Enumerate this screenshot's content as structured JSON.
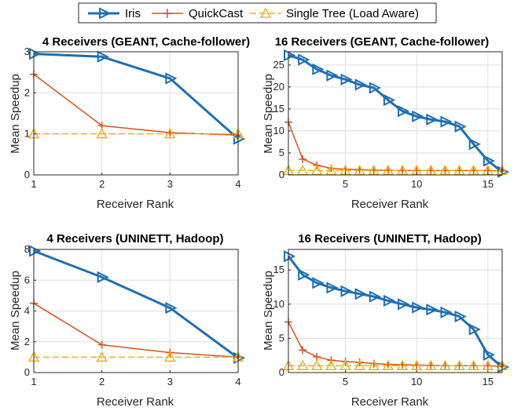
{
  "legend": {
    "placement": "top-center",
    "entries": [
      {
        "name": "Iris",
        "color": "#1f6fb2",
        "marker": "triangle-right",
        "style": "solid-thick"
      },
      {
        "name": "QuickCast",
        "color": "#d95319",
        "marker": "plus",
        "style": "solid"
      },
      {
        "name": "Single Tree (Load Aware)",
        "color": "#edb120",
        "marker": "triangle-up",
        "style": "dashed"
      }
    ]
  },
  "chart_data": [
    {
      "type": "line",
      "title": "4 Receivers (GEANT, Cache-follower)",
      "xlabel": "Receiver Rank",
      "ylabel": "Mean Speedup",
      "xlim": [
        1,
        4
      ],
      "ylim": [
        0,
        3
      ],
      "xticks": [
        1,
        2,
        3,
        4
      ],
      "yticks": [
        0,
        1,
        2,
        3
      ],
      "grid": true,
      "x": [
        1,
        2,
        3,
        4
      ],
      "series": [
        {
          "name": "Iris",
          "values": [
            2.95,
            2.88,
            2.35,
            0.88
          ]
        },
        {
          "name": "QuickCast",
          "values": [
            2.45,
            1.2,
            1.03,
            0.97
          ]
        },
        {
          "name": "Single Tree (Load Aware)",
          "values": [
            1.0,
            1.0,
            1.0,
            1.0
          ]
        }
      ]
    },
    {
      "type": "line",
      "title": "16 Receivers (GEANT, Cache-follower)",
      "xlabel": "Receiver Rank",
      "ylabel": "Mean Speedup",
      "xlim": [
        1,
        16
      ],
      "ylim": [
        0,
        28
      ],
      "xticks": [
        5,
        10,
        15
      ],
      "yticks": [
        0,
        5,
        10,
        15,
        20,
        25
      ],
      "grid": true,
      "x": [
        1,
        2,
        3,
        4,
        5,
        6,
        7,
        8,
        9,
        10,
        11,
        12,
        13,
        14,
        15,
        16
      ],
      "series": [
        {
          "name": "Iris",
          "values": [
            27.2,
            26.2,
            24.0,
            22.6,
            21.7,
            20.5,
            19.8,
            17.0,
            14.5,
            13.3,
            12.6,
            12.1,
            11.0,
            7.0,
            3.2,
            0.7
          ]
        },
        {
          "name": "QuickCast",
          "values": [
            12.0,
            3.6,
            2.2,
            1.5,
            1.3,
            1.2,
            1.1,
            1.05,
            1.0,
            1.0,
            1.0,
            1.0,
            1.0,
            1.0,
            1.0,
            0.9
          ]
        },
        {
          "name": "Single Tree (Load Aware)",
          "values": [
            1,
            1,
            1,
            1,
            1,
            1,
            1,
            1,
            1,
            1,
            1,
            1,
            1,
            1,
            1,
            1
          ]
        }
      ]
    },
    {
      "type": "line",
      "title": "4 Receivers (UNINETT, Hadoop)",
      "xlabel": "Receiver Rank",
      "ylabel": "Mean Speedup",
      "xlim": [
        1,
        4
      ],
      "ylim": [
        0,
        8
      ],
      "xticks": [
        1,
        2,
        3,
        4
      ],
      "yticks": [
        0,
        2,
        4,
        6,
        8
      ],
      "grid": true,
      "x": [
        1,
        2,
        3,
        4
      ],
      "series": [
        {
          "name": "Iris",
          "values": [
            7.9,
            6.2,
            4.2,
            0.95
          ]
        },
        {
          "name": "QuickCast",
          "values": [
            4.5,
            1.8,
            1.3,
            1.0
          ]
        },
        {
          "name": "Single Tree (Load Aware)",
          "values": [
            1.0,
            1.0,
            1.0,
            1.0
          ]
        }
      ]
    },
    {
      "type": "line",
      "title": "16 Receivers (UNINETT, Hadoop)",
      "xlabel": "Receiver Rank",
      "ylabel": "Mean Speedup",
      "xlim": [
        1,
        16
      ],
      "ylim": [
        0,
        18
      ],
      "xticks": [
        5,
        10,
        15
      ],
      "yticks": [
        0,
        5,
        10,
        15
      ],
      "grid": true,
      "x": [
        1,
        2,
        3,
        4,
        5,
        6,
        7,
        8,
        9,
        10,
        11,
        12,
        13,
        14,
        15,
        16
      ],
      "series": [
        {
          "name": "Iris",
          "values": [
            17.0,
            14.3,
            13.1,
            12.4,
            11.9,
            11.5,
            11.1,
            10.5,
            10.0,
            9.5,
            9.2,
            8.8,
            8.2,
            6.3,
            2.6,
            0.8
          ]
        },
        {
          "name": "QuickCast",
          "values": [
            7.4,
            3.3,
            2.3,
            1.8,
            1.6,
            1.5,
            1.3,
            1.2,
            1.15,
            1.1,
            1.05,
            1.0,
            1.0,
            1.0,
            1.0,
            0.9
          ]
        },
        {
          "name": "Single Tree (Load Aware)",
          "values": [
            1,
            1,
            1,
            1,
            1,
            1,
            1,
            1,
            1,
            1,
            1,
            1,
            1,
            1,
            1,
            1
          ]
        }
      ]
    }
  ]
}
